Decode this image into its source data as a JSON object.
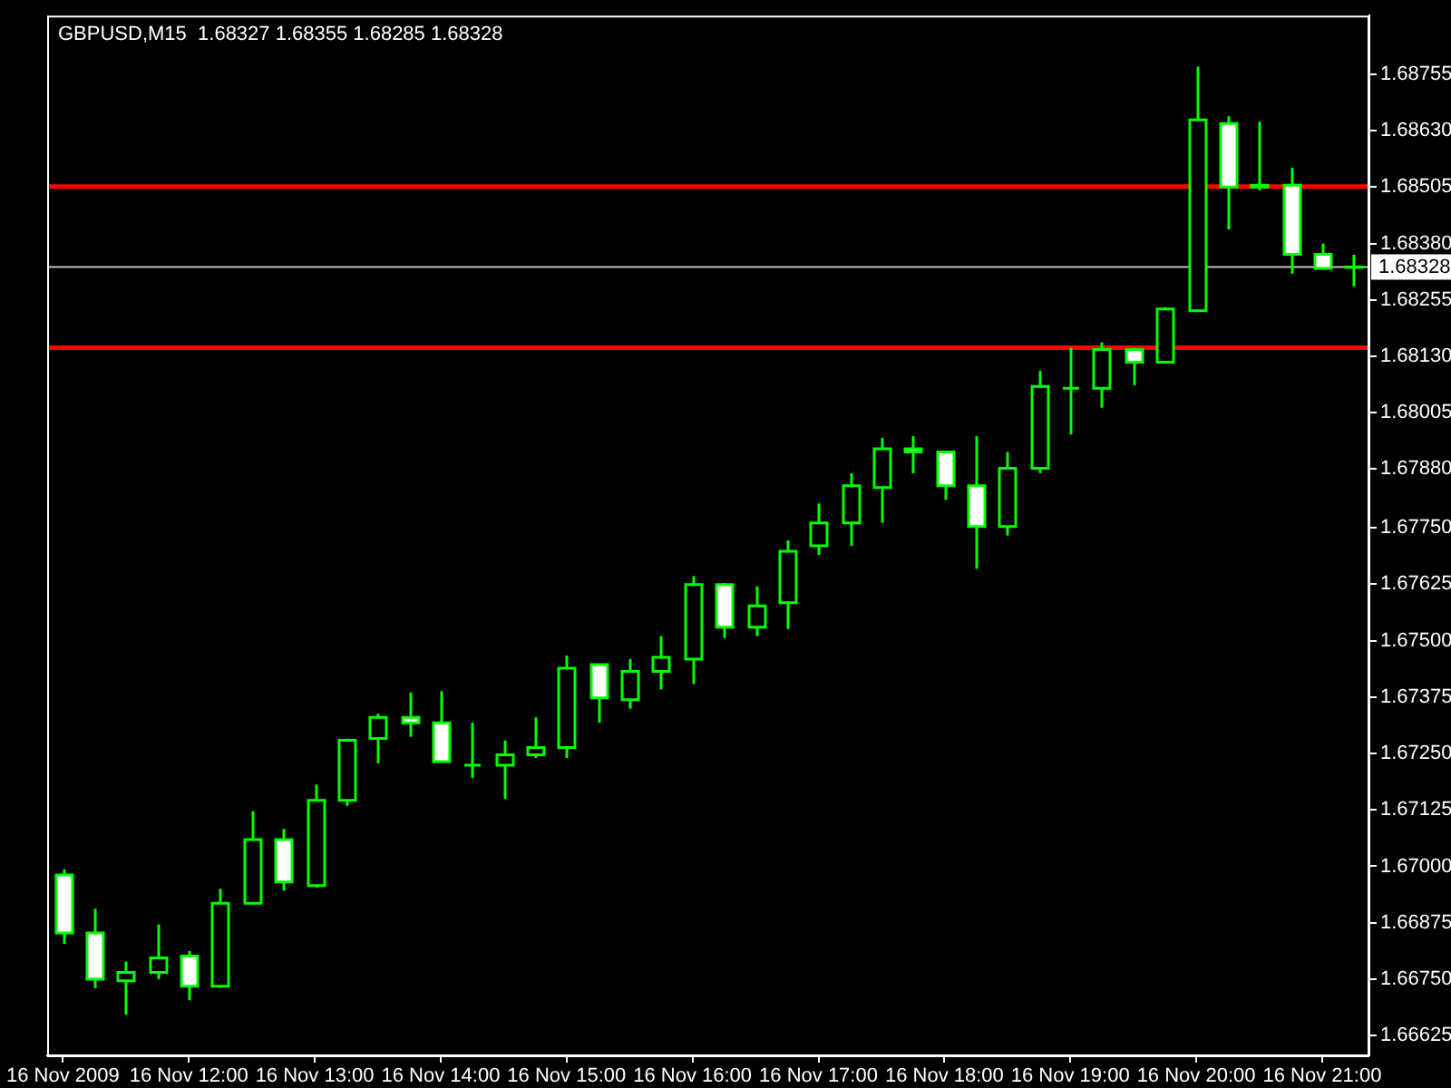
{
  "chart_data": {
    "type": "candlestick",
    "title": "GBPUSD,M15  1.68327 1.68355 1.68285 1.68328",
    "color": "#00ff00",
    "categories": [
      "16 Nov 2009",
      null,
      null,
      null,
      "16 Nov 12:00",
      null,
      null,
      null,
      "16 Nov 13:00",
      null,
      null,
      null,
      "16 Nov 14:00",
      null,
      null,
      null,
      "16 Nov 15:00",
      null,
      null,
      null,
      "16 Nov 16:00",
      null,
      null,
      null,
      "16 Nov 17:00",
      null,
      null,
      null,
      "16 Nov 18:00",
      null,
      null,
      null,
      "16 Nov 19:00",
      null,
      null,
      null,
      "16 Nov 20:00",
      null,
      null,
      null,
      "16 Nov 21:00",
      null
    ],
    "ohlc": [
      [
        1.66981,
        1.66993,
        1.66828,
        1.66852
      ],
      [
        1.66852,
        1.66906,
        1.6673,
        1.6675
      ],
      [
        1.66746,
        1.66789,
        1.66671,
        1.66765
      ],
      [
        1.66765,
        1.66871,
        1.6675,
        1.66797
      ],
      [
        1.66801,
        1.66812,
        1.66703,
        1.66734
      ],
      [
        1.66734,
        1.6695,
        1.66734,
        1.66918
      ],
      [
        1.66918,
        1.67122,
        1.66918,
        1.67059
      ],
      [
        1.67059,
        1.67083,
        1.66946,
        1.66965
      ],
      [
        1.66957,
        1.67181,
        1.66953,
        1.67146
      ],
      [
        1.67146,
        1.67283,
        1.67134,
        1.67279
      ],
      [
        1.67283,
        1.67338,
        1.67228,
        1.6733
      ],
      [
        1.6733,
        1.67385,
        1.67287,
        1.67318
      ],
      [
        1.67318,
        1.67388,
        1.67232,
        1.67232
      ],
      [
        1.67224,
        1.67318,
        1.67196,
        1.67224
      ],
      [
        1.67224,
        1.67279,
        1.67149,
        1.67247
      ],
      [
        1.67247,
        1.6733,
        1.6724,
        1.67263
      ],
      [
        1.67263,
        1.67467,
        1.6724,
        1.67439
      ],
      [
        1.67447,
        1.67447,
        1.67318,
        1.67373
      ],
      [
        1.67369,
        1.67459,
        1.67349,
        1.67432
      ],
      [
        1.67432,
        1.6751,
        1.67392,
        1.67463
      ],
      [
        1.67459,
        1.67643,
        1.67404,
        1.67624
      ],
      [
        1.67624,
        1.67628,
        1.67506,
        1.6753
      ],
      [
        1.6753,
        1.6762,
        1.6751,
        1.67577
      ],
      [
        1.67584,
        1.67722,
        1.67526,
        1.67698
      ],
      [
        1.6771,
        1.67804,
        1.6769,
        1.67761
      ],
      [
        1.67761,
        1.67871,
        1.6771,
        1.67843
      ],
      [
        1.67839,
        1.67949,
        1.67761,
        1.67925
      ],
      [
        1.67925,
        1.67953,
        1.67871,
        1.67918
      ],
      [
        1.67918,
        1.67921,
        1.67812,
        1.67843
      ],
      [
        1.67843,
        1.67953,
        1.67659,
        1.67753
      ],
      [
        1.67753,
        1.67918,
        1.67733,
        1.67882
      ],
      [
        1.67882,
        1.68098,
        1.67871,
        1.68063
      ],
      [
        1.68059,
        1.68149,
        1.67957,
        1.68059
      ],
      [
        1.68059,
        1.68161,
        1.68016,
        1.68145
      ],
      [
        1.68145,
        1.68149,
        1.68066,
        1.68117
      ],
      [
        1.68117,
        1.68239,
        1.68117,
        1.68235
      ],
      [
        1.68231,
        1.68772,
        1.68231,
        1.68654
      ],
      [
        1.68646,
        1.68662,
        1.68411,
        1.68505
      ],
      [
        1.68505,
        1.6865,
        1.68498,
        1.68509
      ],
      [
        1.68509,
        1.68548,
        1.68313,
        1.68356
      ],
      [
        1.68356,
        1.6838,
        1.68325,
        1.68325
      ],
      [
        1.68327,
        1.68355,
        1.68285,
        1.68328
      ]
    ],
    "ylim": [
      1.66581,
      1.68885
    ],
    "yticks": [
      {
        "value": 1.66625,
        "label": "1.66625"
      },
      {
        "value": 1.6675,
        "label": "1.66750"
      },
      {
        "value": 1.66875,
        "label": "1.66875"
      },
      {
        "value": 1.67,
        "label": "1.67000"
      },
      {
        "value": 1.67125,
        "label": "1.67125"
      },
      {
        "value": 1.6725,
        "label": "1.67250"
      },
      {
        "value": 1.67375,
        "label": "1.67375"
      },
      {
        "value": 1.675,
        "label": "1.67500"
      },
      {
        "value": 1.67625,
        "label": "1.67625"
      },
      {
        "value": 1.6775,
        "label": "1.67750"
      },
      {
        "value": 1.6788,
        "label": "1.67880"
      },
      {
        "value": 1.68005,
        "label": "1.68005"
      },
      {
        "value": 1.6813,
        "label": "1.68130"
      },
      {
        "value": 1.68255,
        "label": "1.68255"
      },
      {
        "value": 1.6838,
        "label": "1.68380"
      },
      {
        "value": 1.68505,
        "label": "1.68505"
      },
      {
        "value": 1.6863,
        "label": "1.68630"
      },
      {
        "value": 1.68755,
        "label": "1.68755"
      }
    ],
    "ref_lines": [
      {
        "axis": "y",
        "value": 1.68506,
        "color": "#ff0000"
      },
      {
        "axis": "y",
        "value": 1.68149,
        "color": "#ff0000"
      },
      {
        "axis": "y",
        "value": 1.68328,
        "label": "1.68328",
        "color": "#c0c0c0"
      }
    ],
    "grid": false,
    "legend": false
  }
}
